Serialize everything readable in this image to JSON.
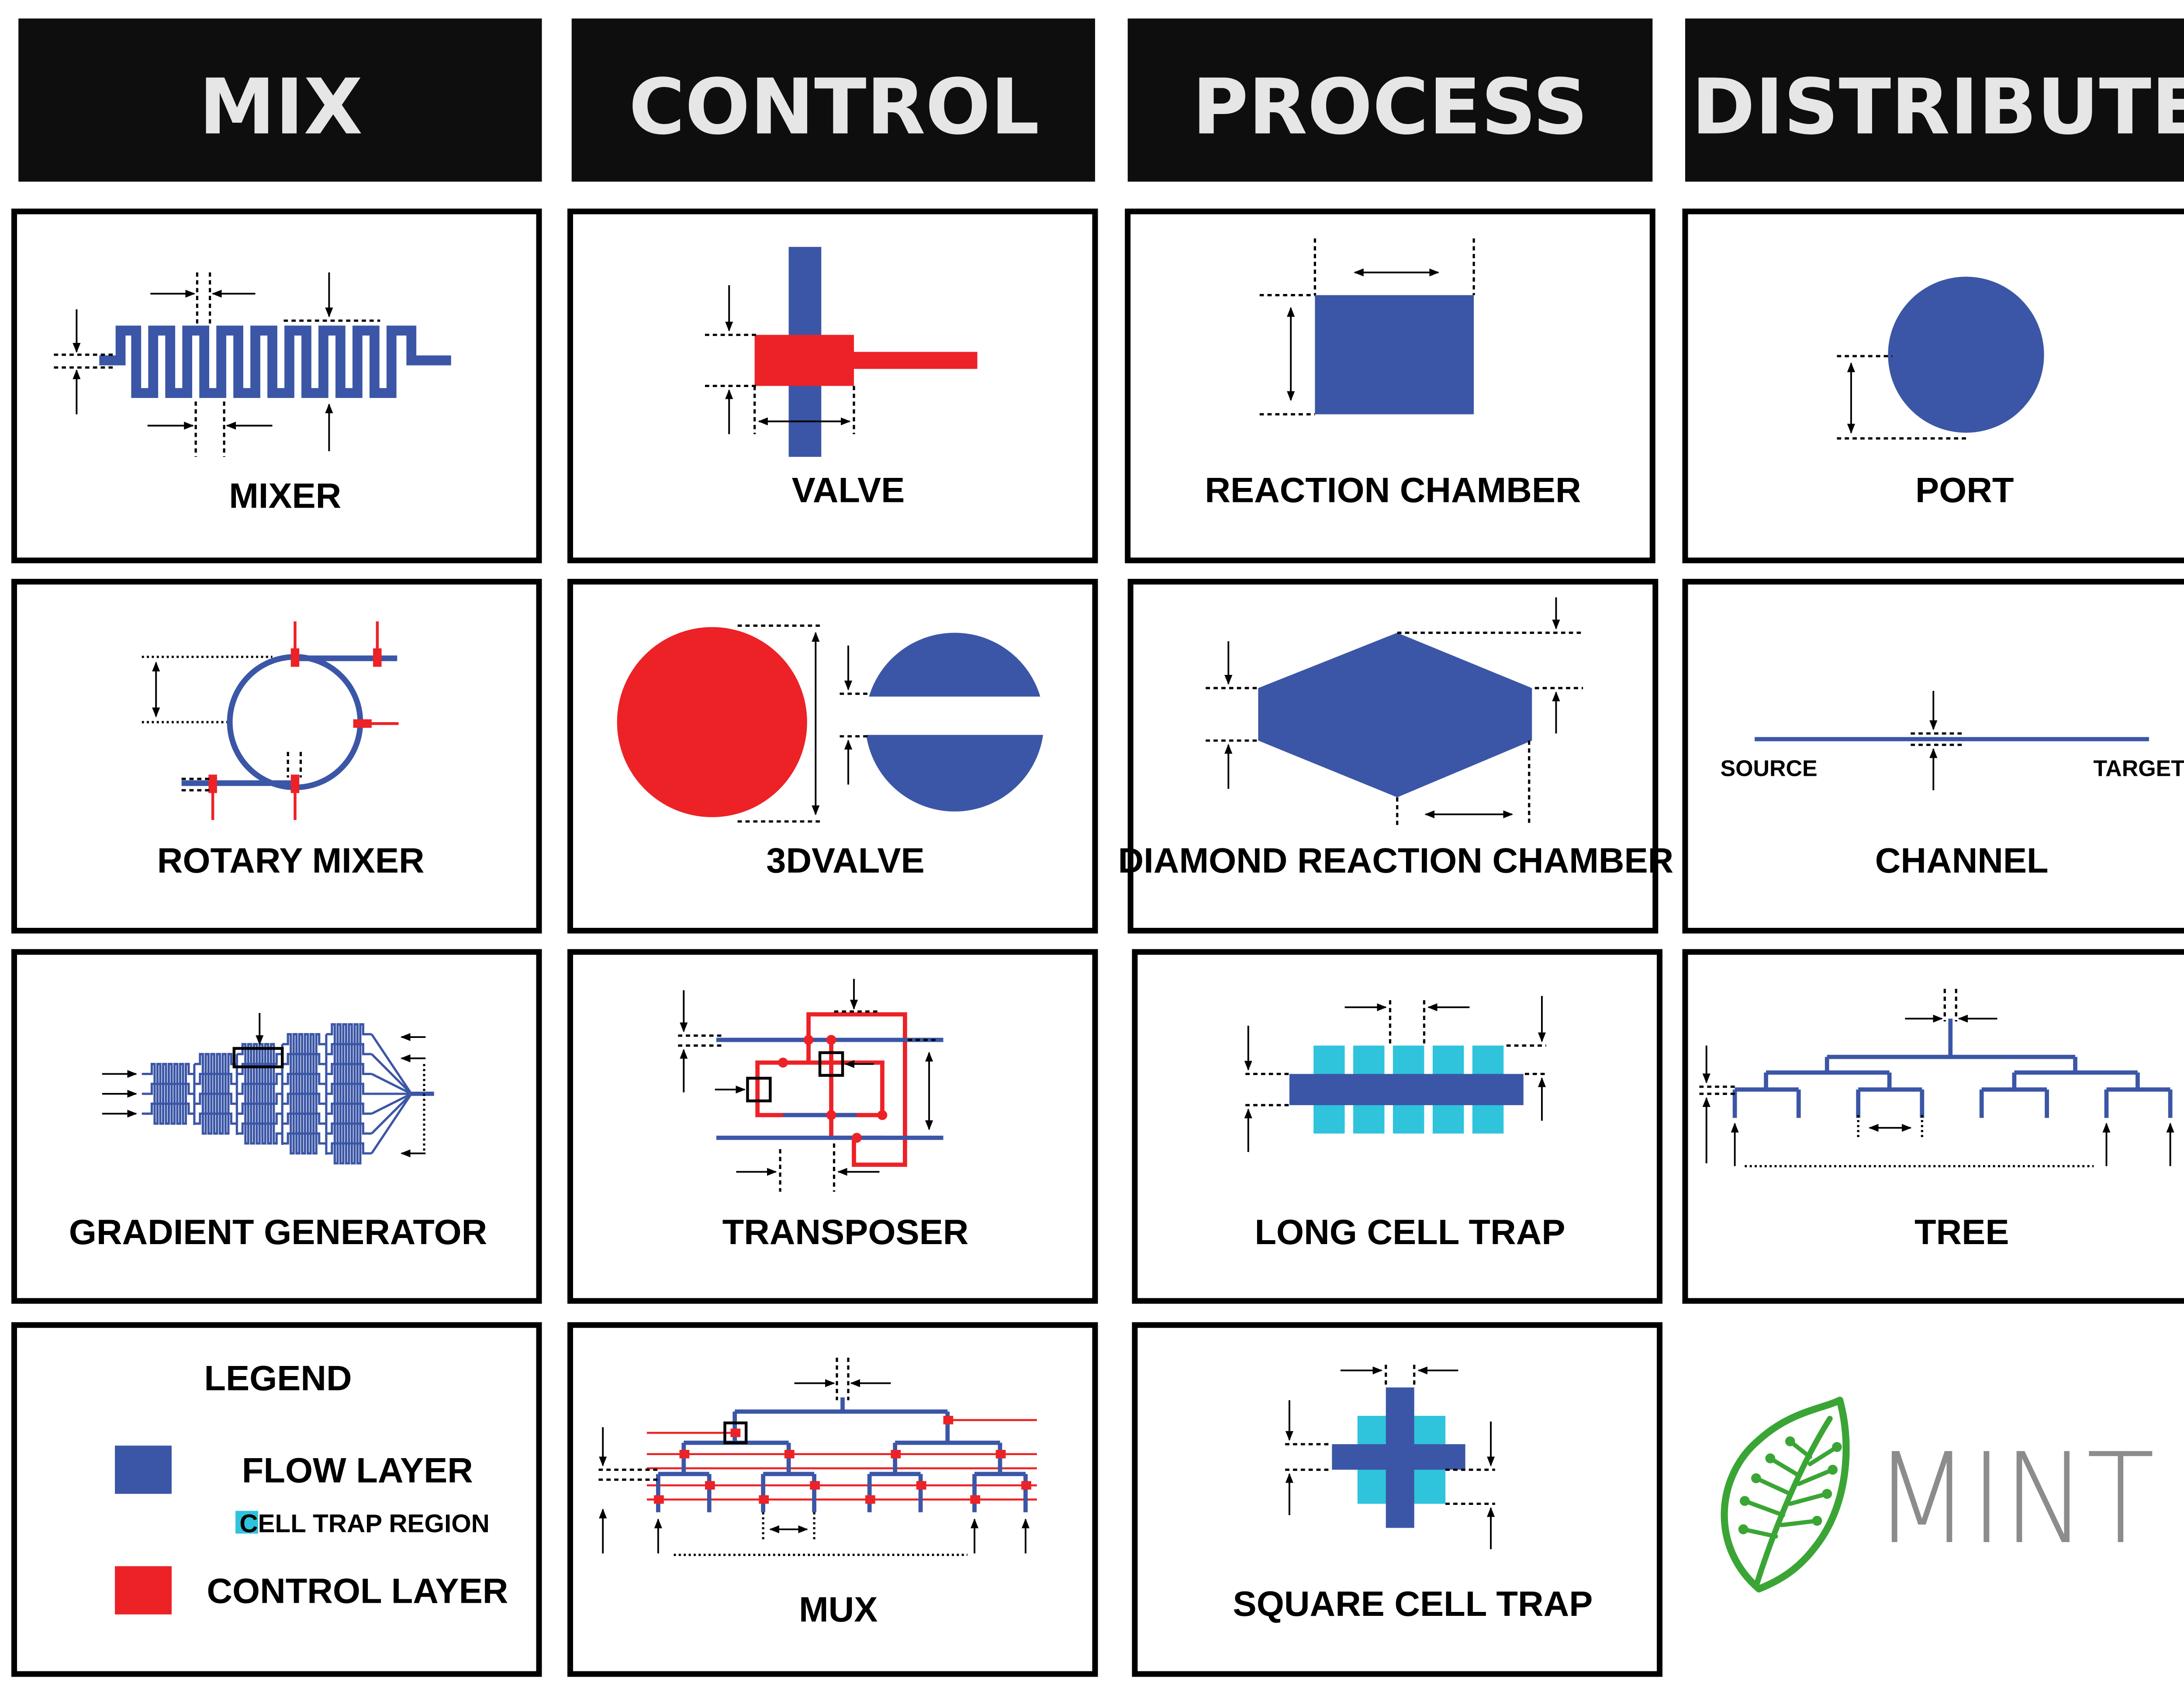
{
  "colors": {
    "flow": "#3b56a6",
    "control": "#ec2227",
    "cell_trap": "#2fc3dc",
    "header_bg": "#0e0e0e",
    "header_text": "#e6e6e6",
    "leaf": "#3aa535",
    "mint_text": "#8c8c8c"
  },
  "headers": {
    "mix": "MIX",
    "control": "CONTROL",
    "process": "PROCESS",
    "distribute": "DISTRIBUTE"
  },
  "components": {
    "mixer": "MIXER",
    "valve": "VALVE",
    "reaction_chamber": "REACTION CHAMBER",
    "port": "PORT",
    "rotary_mixer": "ROTARY MIXER",
    "valve3d": "3DVALVE",
    "diamond_reaction_chamber": "DIAMOND REACTION CHAMBER",
    "channel": "CHANNEL",
    "gradient_generator": "GRADIENT GENERATOR",
    "transposer": "TRANSPOSER",
    "long_cell_trap": "LONG CELL TRAP",
    "tree": "TREE",
    "mux": "MUX",
    "square_cell_trap": "SQUARE CELL TRAP"
  },
  "channel_labels": {
    "source": "SOURCE",
    "target": "TARGET"
  },
  "legend": {
    "title": "LEGEND",
    "flow_layer": "FLOW LAYER",
    "cell_trap_region": "CELL TRAP REGION",
    "control_layer": "CONTROL LAYER"
  },
  "logo": {
    "text": "MINT",
    "icon": "leaf-icon"
  }
}
